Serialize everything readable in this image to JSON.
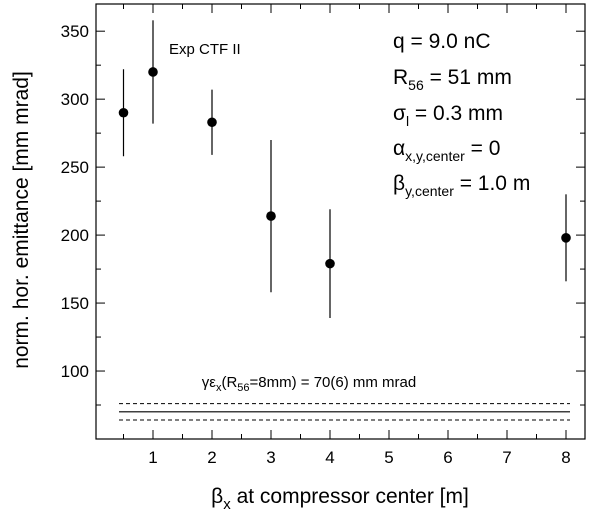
{
  "chart_data": {
    "type": "scatter",
    "title": "",
    "xlabel": {
      "symbol": "β",
      "sub": "x",
      "rest": " at compressor center  [m]"
    },
    "ylabel": "norm. hor. emittance  [mm mrad]",
    "x_categories": [
      0.5,
      1,
      2,
      3,
      4,
      8
    ],
    "x_tick_labels": [
      "1",
      "2",
      "3",
      "4",
      "5",
      "6",
      "7",
      "8"
    ],
    "y_ticks": [
      100,
      150,
      200,
      250,
      300,
      350
    ],
    "ylim": [
      50,
      370
    ],
    "grid": false,
    "series": [
      {
        "x": [
          0.5,
          1,
          2,
          3,
          4,
          8
        ],
        "y": [
          290,
          320,
          283,
          214,
          179,
          198
        ],
        "err_low": [
          258,
          282,
          259,
          158,
          139,
          166
        ],
        "err_high": [
          322,
          358,
          307,
          270,
          219,
          230
        ]
      }
    ],
    "reference_lines": {
      "value": 70,
      "err_low": 64,
      "err_high": 76,
      "label": {
        "pre": "γε",
        "sub1": "x",
        "mid": "(R",
        "sub2": "56",
        "post": "=8mm) = 70(6) mm mrad"
      }
    },
    "annotations": {
      "experiment": "Exp CTF II",
      "charge": "q = 9.0 nC",
      "r56": {
        "main": "R",
        "sub": "56",
        "rest": " = 51 mm"
      },
      "sigma": {
        "main": "σ",
        "sub": "l",
        "rest": " = 0.3 mm"
      },
      "alpha": {
        "main": "α",
        "sub": "x,y,center",
        "rest": " = 0"
      },
      "beta": {
        "main": "β",
        "sub": "y,center",
        "rest": " = 1.0 m"
      }
    }
  }
}
